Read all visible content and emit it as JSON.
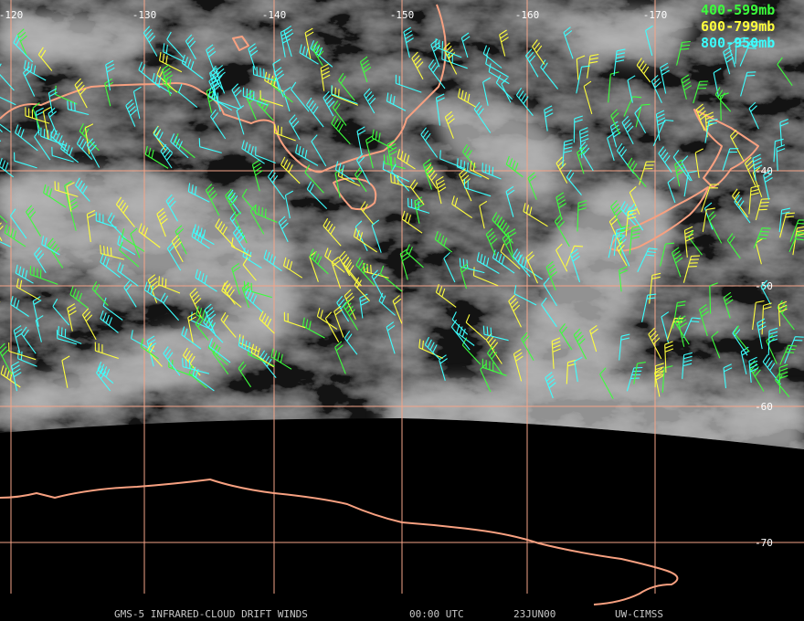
{
  "legend": [
    {
      "label": "400-599mb",
      "color": "#3cff3c"
    },
    {
      "label": "600-799mb",
      "color": "#ffff3c"
    },
    {
      "label": "800-950mb",
      "color": "#3cffff"
    }
  ],
  "longitude_labels": [
    -120,
    -130,
    -140,
    -150,
    -160,
    -170
  ],
  "latitude_labels": [
    -40,
    -50,
    -60,
    -70
  ],
  "footer": {
    "product": "GMS-5 INFRARED-CLOUD DRIFT WINDS",
    "time": "00:00 UTC",
    "date": "23JUN00",
    "source": "UW-CIMSS"
  }
}
